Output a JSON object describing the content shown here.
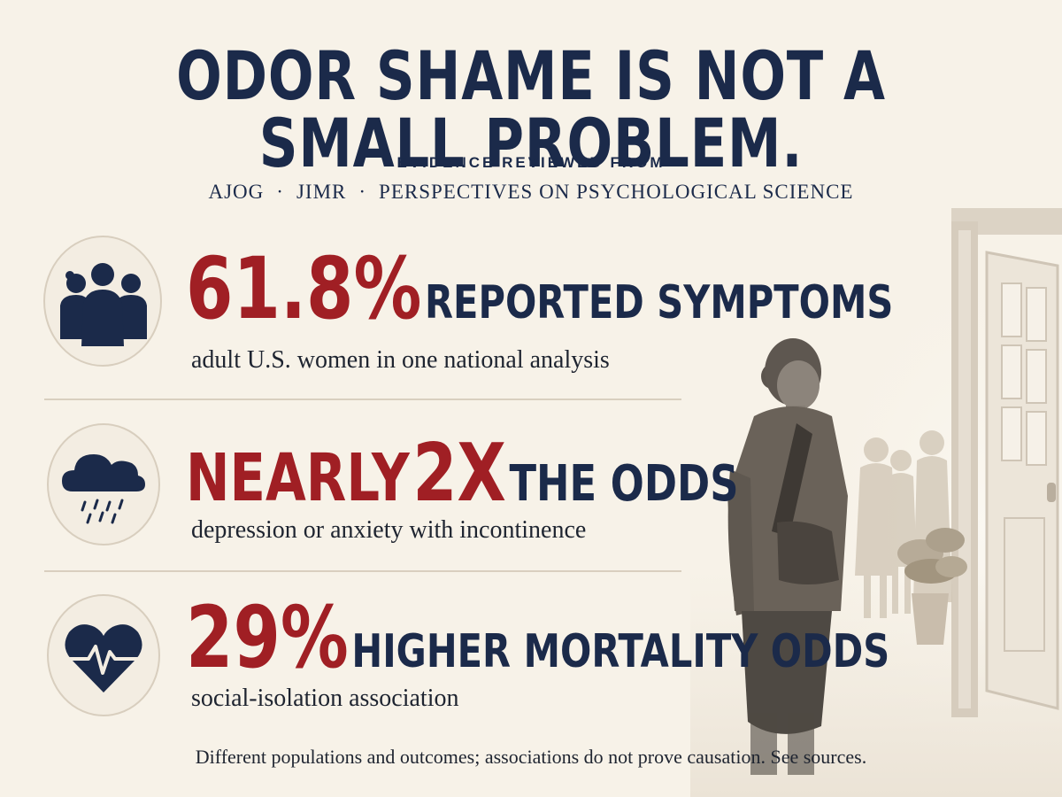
{
  "headline": "ODOR SHAME IS NOT A SMALL PROBLEM.",
  "evidence_label": "EVIDENCE REVIEWED FROM",
  "sources": [
    "AJOG",
    "JIMR",
    "PERSPECTIVES ON PSYCHOLOGICAL SCIENCE"
  ],
  "source_separator": "·",
  "stats": [
    {
      "icon": "women-group-icon",
      "big": "61.8%",
      "label": "REPORTED SYMPTOMS",
      "big_first": true,
      "sub": "adult U.S. women in one national analysis"
    },
    {
      "icon": "rain-cloud-icon",
      "pre": "NEARLY",
      "big": "2X",
      "label": "THE ODDS",
      "sub": "depression or anxiety with incontinence"
    },
    {
      "icon": "heartbeat-icon",
      "big": "29%",
      "label": "HIGHER MORTALITY ODDS",
      "sub": "social-isolation association"
    }
  ],
  "disclaimer": "Different populations and outcomes; associations do not prove causation. See sources.",
  "colors": {
    "background": "#f7f2e8",
    "navy": "#1b2a4a",
    "accent_red": "#a01f24",
    "sepia": "#6a6259"
  }
}
